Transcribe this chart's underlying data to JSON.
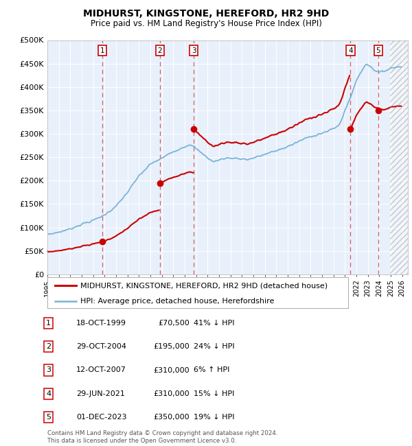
{
  "title": "MIDHURST, KINGSTONE, HEREFORD, HR2 9HD",
  "subtitle": "Price paid vs. HM Land Registry's House Price Index (HPI)",
  "ylim": [
    0,
    500000
  ],
  "yticks": [
    0,
    50000,
    100000,
    150000,
    200000,
    250000,
    300000,
    350000,
    400000,
    450000,
    500000
  ],
  "ytick_labels": [
    "£0",
    "£50K",
    "£100K",
    "£150K",
    "£200K",
    "£250K",
    "£300K",
    "£350K",
    "£400K",
    "£450K",
    "£500K"
  ],
  "xlim_start": 1995.0,
  "xlim_end": 2026.5,
  "xtick_years": [
    1995,
    1996,
    1997,
    1998,
    1999,
    2000,
    2001,
    2002,
    2003,
    2004,
    2005,
    2006,
    2007,
    2008,
    2009,
    2010,
    2011,
    2012,
    2013,
    2014,
    2015,
    2016,
    2017,
    2018,
    2019,
    2020,
    2021,
    2022,
    2023,
    2024,
    2025,
    2026
  ],
  "background_color": "#e8f0fb",
  "hatch_region_start": 2024.917,
  "sales": [
    {
      "label": "1",
      "date_num": 1999.79,
      "price": 70500
    },
    {
      "label": "2",
      "date_num": 2004.83,
      "price": 195000
    },
    {
      "label": "3",
      "date_num": 2007.78,
      "price": 310000
    },
    {
      "label": "4",
      "date_num": 2021.49,
      "price": 310000
    },
    {
      "label": "5",
      "date_num": 2023.92,
      "price": 350000
    }
  ],
  "legend_line1": "MIDHURST, KINGSTONE, HEREFORD, HR2 9HD (detached house)",
  "legend_line2": "HPI: Average price, detached house, Herefordshire",
  "table_rows": [
    {
      "num": "1",
      "date": "18-OCT-1999",
      "price": "£70,500",
      "hpi": "41% ↓ HPI"
    },
    {
      "num": "2",
      "date": "29-OCT-2004",
      "price": "£195,000",
      "hpi": "24% ↓ HPI"
    },
    {
      "num": "3",
      "date": "12-OCT-2007",
      "price": "£310,000",
      "hpi": "6% ↑ HPI"
    },
    {
      "num": "4",
      "date": "29-JUN-2021",
      "price": "£310,000",
      "hpi": "15% ↓ HPI"
    },
    {
      "num": "5",
      "date": "01-DEC-2023",
      "price": "£350,000",
      "hpi": "19% ↓ HPI"
    }
  ],
  "footer": "Contains HM Land Registry data © Crown copyright and database right 2024.\nThis data is licensed under the Open Government Licence v3.0.",
  "red_color": "#cc0000",
  "blue_color": "#7ab3d8",
  "dash_color": "#cc4444"
}
